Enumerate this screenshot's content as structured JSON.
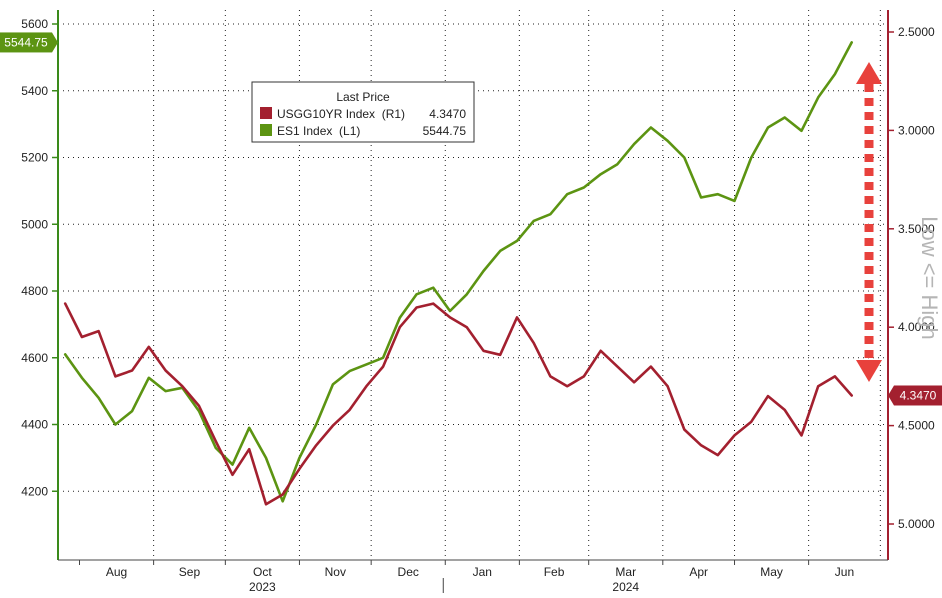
{
  "chart_data": {
    "type": "line",
    "legend": {
      "title": "Last Price",
      "placement": "top-left",
      "entries": [
        {
          "name": "USGG10YR Index  (R1)",
          "value": "4.3470",
          "color": "#a3202f"
        },
        {
          "name": "ES1 Index  (L1)",
          "value": "5544.75",
          "color": "#5c9412"
        }
      ]
    },
    "x_axis": {
      "month_labels": [
        "Aug",
        "Sep",
        "Oct",
        "Nov",
        "Dec",
        "Jan",
        "Feb",
        "Mar",
        "Apr",
        "May",
        "Jun"
      ],
      "year_labels": [
        "2023",
        "2024"
      ]
    },
    "left_axis": {
      "min": 4000,
      "max": 5600,
      "ticks": [
        "5600",
        "5400",
        "5200",
        "5000",
        "4800",
        "4600",
        "4400",
        "4200"
      ],
      "last_value_tag": "5544.75"
    },
    "right_axis": {
      "inverted": true,
      "min": 2.5,
      "max": 5.0,
      "ticks": [
        "2.5000",
        "3.0000",
        "3.5000",
        "4.0000",
        "4.5000",
        "5.0000"
      ],
      "last_value_tag": "4.3470",
      "side_label": "Low <= High"
    },
    "grid": true,
    "annotation": "dashed red double-headed arrow between the two series at the latest date",
    "series": [
      {
        "name": "ES1 Index",
        "axis": "left",
        "color": "#5c9412",
        "dates": [
          "2023-07-26",
          "2023-08-02",
          "2023-08-09",
          "2023-08-16",
          "2023-08-23",
          "2023-08-30",
          "2023-09-06",
          "2023-09-13",
          "2023-09-20",
          "2023-09-27",
          "2023-10-04",
          "2023-10-11",
          "2023-10-18",
          "2023-10-25",
          "2023-11-01",
          "2023-11-08",
          "2023-11-15",
          "2023-11-22",
          "2023-11-29",
          "2023-12-06",
          "2023-12-13",
          "2023-12-20",
          "2023-12-27",
          "2024-01-03",
          "2024-01-10",
          "2024-01-17",
          "2024-01-24",
          "2024-01-31",
          "2024-02-07",
          "2024-02-14",
          "2024-02-21",
          "2024-02-28",
          "2024-03-06",
          "2024-03-13",
          "2024-03-20",
          "2024-03-27",
          "2024-04-03",
          "2024-04-10",
          "2024-04-17",
          "2024-04-24",
          "2024-05-01",
          "2024-05-08",
          "2024-05-15",
          "2024-05-22",
          "2024-05-29",
          "2024-06-05",
          "2024-06-12",
          "2024-06-19"
        ],
        "values": [
          4610,
          4540,
          4480,
          4400,
          4440,
          4540,
          4500,
          4510,
          4440,
          4330,
          4280,
          4390,
          4300,
          4170,
          4300,
          4400,
          4520,
          4560,
          4580,
          4600,
          4720,
          4790,
          4810,
          4740,
          4790,
          4860,
          4920,
          4950,
          5010,
          5030,
          5090,
          5110,
          5150,
          5180,
          5240,
          5290,
          5250,
          5200,
          5080,
          5090,
          5070,
          5200,
          5290,
          5320,
          5280,
          5380,
          5450,
          5544.75
        ]
      },
      {
        "name": "USGG10YR Index",
        "axis": "right",
        "color": "#a3202f",
        "dates": [
          "2023-07-26",
          "2023-08-02",
          "2023-08-09",
          "2023-08-16",
          "2023-08-23",
          "2023-08-30",
          "2023-09-06",
          "2023-09-13",
          "2023-09-20",
          "2023-09-27",
          "2023-10-04",
          "2023-10-11",
          "2023-10-18",
          "2023-10-25",
          "2023-11-01",
          "2023-11-08",
          "2023-11-15",
          "2023-11-22",
          "2023-11-29",
          "2023-12-06",
          "2023-12-13",
          "2023-12-20",
          "2023-12-27",
          "2024-01-03",
          "2024-01-10",
          "2024-01-17",
          "2024-01-24",
          "2024-01-31",
          "2024-02-07",
          "2024-02-14",
          "2024-02-21",
          "2024-02-28",
          "2024-03-06",
          "2024-03-13",
          "2024-03-20",
          "2024-03-27",
          "2024-04-03",
          "2024-04-10",
          "2024-04-17",
          "2024-04-24",
          "2024-05-01",
          "2024-05-08",
          "2024-05-15",
          "2024-05-22",
          "2024-05-29",
          "2024-06-05",
          "2024-06-12",
          "2024-06-19"
        ],
        "values": [
          3.88,
          4.05,
          4.02,
          4.25,
          4.22,
          4.1,
          4.22,
          4.3,
          4.4,
          4.58,
          4.75,
          4.62,
          4.9,
          4.85,
          4.72,
          4.6,
          4.5,
          4.42,
          4.3,
          4.2,
          4.0,
          3.9,
          3.88,
          3.95,
          4.0,
          4.12,
          4.14,
          3.95,
          4.08,
          4.25,
          4.3,
          4.25,
          4.12,
          4.2,
          4.28,
          4.2,
          4.3,
          4.52,
          4.6,
          4.65,
          4.55,
          4.48,
          4.35,
          4.42,
          4.55,
          4.3,
          4.25,
          4.347
        ]
      }
    ]
  }
}
